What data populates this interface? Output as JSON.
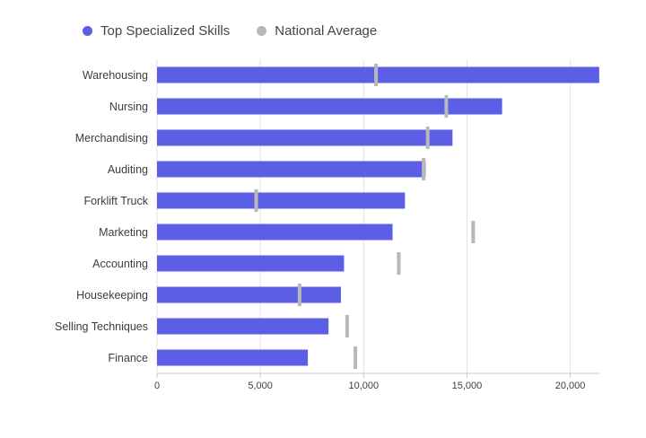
{
  "colors": {
    "bar": "#5c5fe6",
    "marker": "#b8b8b8",
    "grid": "#e3e3e3",
    "axis": "#c8c8c8"
  },
  "chart_data": {
    "type": "bar",
    "orientation": "horizontal",
    "categories": [
      "Warehousing",
      "Nursing",
      "Merchandising",
      "Auditing",
      "Forklift Truck",
      "Marketing",
      "Accounting",
      "Housekeeping",
      "Selling Techniques",
      "Finance"
    ],
    "series": [
      {
        "name": "Top Specialized Skills",
        "values": [
          21400,
          16700,
          14300,
          13000,
          12000,
          11400,
          9050,
          8900,
          8300,
          7300
        ]
      },
      {
        "name": "National Average",
        "values": [
          10600,
          14000,
          13100,
          12900,
          4800,
          15300,
          11700,
          6900,
          9200,
          9600
        ]
      }
    ],
    "xlim": [
      0,
      21450
    ],
    "xticks": [
      0,
      5000,
      10000,
      15000,
      20000
    ],
    "xtick_labels": [
      "0",
      "5,000",
      "10,000",
      "15,000",
      "20,000"
    ],
    "grid": true,
    "legend_position": "top-left"
  }
}
